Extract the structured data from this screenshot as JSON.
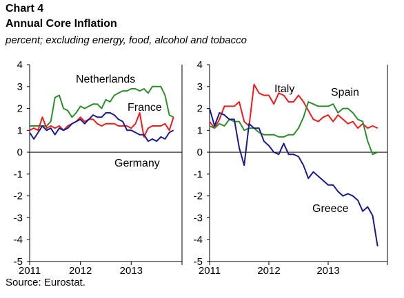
{
  "header": {
    "chart_number": "Chart 4",
    "title": "Annual Core Inflation",
    "subtitle": "percent; excluding energy, food, alcohol and tobacco"
  },
  "source": "Source: Eurostat.",
  "colors": {
    "Netherlands": "#2e8b2e",
    "France": "#ee1c1c",
    "Germany": "#1a1a8c",
    "Italy": "#ee1c1c",
    "Spain": "#2e8b2e",
    "Greece": "#1a1a8c"
  },
  "chart_data": [
    {
      "type": "line",
      "panel": "left",
      "ylim": [
        -5,
        4
      ],
      "y_ticks": [
        "4",
        "3",
        "2",
        "1",
        "0",
        "-1",
        "-2",
        "-3",
        "-4",
        "-5"
      ],
      "x_tick_labels": [
        "2011",
        "2012",
        "2013"
      ],
      "x_tick_years": [
        2011,
        2012,
        2013
      ],
      "x": [
        "2011-01",
        "2011-02",
        "2011-03",
        "2011-04",
        "2011-05",
        "2011-06",
        "2011-07",
        "2011-08",
        "2011-09",
        "2011-10",
        "2011-11",
        "2011-12",
        "2012-01",
        "2012-02",
        "2012-03",
        "2012-04",
        "2012-05",
        "2012-06",
        "2012-07",
        "2012-08",
        "2012-09",
        "2012-10",
        "2012-11",
        "2012-12",
        "2013-01",
        "2013-02",
        "2013-03",
        "2013-04",
        "2013-05",
        "2013-06",
        "2013-07",
        "2013-08",
        "2013-09",
        "2013-10",
        "2013-11"
      ],
      "series": [
        {
          "name": "Netherlands",
          "values": [
            1.2,
            1.2,
            1.2,
            1.2,
            1.2,
            1.4,
            2.5,
            2.6,
            2.0,
            1.9,
            1.6,
            1.8,
            2.1,
            2.0,
            2.1,
            2.2,
            2.2,
            2.0,
            2.4,
            2.3,
            2.6,
            2.7,
            2.8,
            2.8,
            2.9,
            2.9,
            2.8,
            2.9,
            2.7,
            3.0,
            3.0,
            3.0,
            2.6,
            1.7,
            1.6
          ]
        },
        {
          "name": "France",
          "values": [
            1.0,
            1.1,
            1.0,
            1.6,
            1.1,
            1.2,
            1.1,
            1.2,
            1.0,
            1.2,
            1.3,
            1.4,
            1.6,
            1.4,
            1.5,
            1.5,
            1.3,
            1.2,
            1.3,
            1.3,
            1.3,
            1.2,
            1.2,
            1.2,
            1.1,
            1.3,
            1.8,
            0.7,
            1.1,
            1.2,
            1.2,
            1.2,
            1.3,
            1.0,
            1.6
          ]
        },
        {
          "name": "Germany",
          "values": [
            0.9,
            0.6,
            0.9,
            1.2,
            1.0,
            1.1,
            0.8,
            1.1,
            1.0,
            1.1,
            1.3,
            1.4,
            1.5,
            1.3,
            1.5,
            1.7,
            1.6,
            1.6,
            1.8,
            1.8,
            1.7,
            1.5,
            1.4,
            1.0,
            1.0,
            0.9,
            0.8,
            0.8,
            0.5,
            0.6,
            0.5,
            0.7,
            0.6,
            0.9,
            1.0
          ]
        }
      ],
      "labels": [
        "Netherlands",
        "France",
        "Germany"
      ]
    },
    {
      "type": "line",
      "panel": "right",
      "ylim": [
        -5,
        4
      ],
      "y_ticks": [
        "4",
        "3",
        "2",
        "1",
        "0",
        "-1",
        "-2",
        "-3",
        "-4",
        "-5"
      ],
      "x_tick_labels": [
        "2011",
        "2012",
        "2013"
      ],
      "x_tick_years": [
        2011,
        2012,
        2013
      ],
      "x": [
        "2011-01",
        "2011-02",
        "2011-03",
        "2011-04",
        "2011-05",
        "2011-06",
        "2011-07",
        "2011-08",
        "2011-09",
        "2011-10",
        "2011-11",
        "2011-12",
        "2012-01",
        "2012-02",
        "2012-03",
        "2012-04",
        "2012-05",
        "2012-06",
        "2012-07",
        "2012-08",
        "2012-09",
        "2012-10",
        "2012-11",
        "2012-12",
        "2013-01",
        "2013-02",
        "2013-03",
        "2013-04",
        "2013-05",
        "2013-06",
        "2013-07",
        "2013-08",
        "2013-09",
        "2013-10",
        "2013-11"
      ],
      "series": [
        {
          "name": "Italy",
          "values": [
            1.4,
            1.1,
            1.5,
            2.1,
            2.1,
            2.1,
            2.3,
            1.4,
            1.2,
            3.1,
            2.7,
            2.6,
            2.6,
            2.2,
            2.7,
            2.6,
            2.3,
            2.3,
            2.6,
            2.3,
            1.9,
            1.5,
            1.4,
            1.6,
            1.7,
            1.4,
            1.7,
            1.5,
            1.3,
            1.4,
            1.1,
            1.3,
            1.1,
            1.2,
            1.1
          ]
        },
        {
          "name": "Spain",
          "values": [
            1.2,
            1.1,
            1.3,
            1.2,
            1.5,
            1.4,
            1.4,
            1.0,
            1.1,
            1.1,
            0.9,
            0.8,
            0.8,
            0.8,
            0.7,
            0.7,
            0.8,
            0.8,
            1.1,
            1.6,
            2.3,
            2.2,
            2.1,
            2.1,
            2.1,
            2.2,
            1.8,
            2.0,
            2.0,
            1.8,
            1.5,
            1.4,
            0.5,
            -0.1,
            0.0
          ]
        },
        {
          "name": "Greece",
          "values": [
            2.0,
            1.2,
            1.8,
            1.7,
            1.5,
            1.5,
            0.2,
            -0.6,
            1.3,
            1.1,
            1.1,
            0.5,
            0.3,
            0.0,
            -0.1,
            0.4,
            -0.1,
            -0.1,
            -0.2,
            -0.6,
            -1.2,
            -0.9,
            -1.1,
            -1.3,
            -1.5,
            -1.5,
            -1.8,
            -2.0,
            -1.9,
            -2.0,
            -2.2,
            -2.7,
            -2.5,
            -2.9,
            -4.3
          ]
        }
      ],
      "labels": [
        "Italy",
        "Spain",
        "Greece"
      ]
    }
  ]
}
